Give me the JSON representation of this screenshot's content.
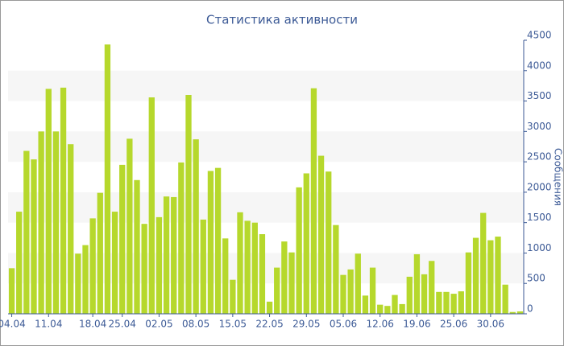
{
  "chart_data": {
    "type": "bar",
    "title": "Статистика активности",
    "y_label": "Сообщения",
    "categories": [
      "04.04",
      null,
      null,
      null,
      null,
      "11.04",
      null,
      null,
      null,
      null,
      null,
      "18.04",
      null,
      null,
      null,
      "25.04",
      null,
      null,
      null,
      null,
      "02.05",
      null,
      null,
      null,
      null,
      "08.05",
      null,
      null,
      null,
      null,
      "15.05",
      null,
      null,
      null,
      null,
      "22.05",
      null,
      null,
      null,
      null,
      "29.05",
      null,
      null,
      null,
      null,
      "05.06",
      null,
      null,
      null,
      null,
      "12.06",
      null,
      null,
      null,
      null,
      "19.06",
      null,
      null,
      null,
      null,
      "25.06",
      null,
      null,
      null,
      null,
      "30.06",
      null,
      null,
      null,
      null
    ],
    "values": [
      750,
      1680,
      2680,
      2540,
      3000,
      3700,
      3000,
      3720,
      2790,
      990,
      1130,
      1570,
      1990,
      4430,
      1680,
      2450,
      2880,
      2200,
      1480,
      3560,
      1590,
      1930,
      1920,
      2490,
      3600,
      2870,
      1550,
      2350,
      2400,
      1240,
      560,
      1670,
      1530,
      1500,
      1310,
      200,
      760,
      1190,
      1010,
      2080,
      2310,
      3710,
      2600,
      2340,
      1460,
      640,
      730,
      990,
      300,
      760,
      150,
      130,
      310,
      160,
      610,
      980,
      650,
      870,
      360,
      360,
      330,
      370,
      1010,
      1250,
      1660,
      1210,
      1270,
      480,
      30,
      40
    ],
    "color": "#b6d82c",
    "ylim": [
      0,
      4500
    ],
    "yticks": [
      0,
      500,
      1000,
      1500,
      2000,
      2500,
      3000,
      3500,
      4000,
      4500
    ],
    "grid": true
  }
}
